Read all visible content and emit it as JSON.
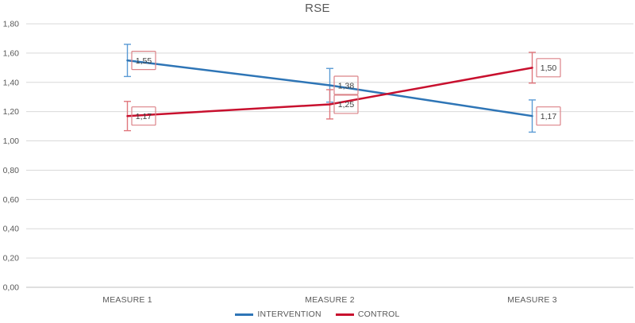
{
  "chart_data": {
    "type": "line",
    "title": "RSE",
    "categories": [
      "MEASURE 1",
      "MEASURE 2",
      "MEASURE 3"
    ],
    "series": [
      {
        "name": "INTERVENTION",
        "color": "#2E75B6",
        "error_color": "#5B9BD5",
        "values": [
          1.55,
          1.38,
          1.17
        ],
        "value_labels": [
          "1,55",
          "1,38",
          "1,17"
        ],
        "errors": [
          0.11,
          0.115,
          0.11
        ]
      },
      {
        "name": "CONTROL",
        "color": "#C8102E",
        "error_color": "#E0777D",
        "values": [
          1.17,
          1.25,
          1.5
        ],
        "value_labels": [
          "1,17",
          "1,25",
          "1,50"
        ],
        "errors": [
          0.1,
          0.1,
          0.105
        ]
      }
    ],
    "ylim": [
      0,
      1.8
    ],
    "ytick_step": 0.2,
    "ytick_labels_top_down": [
      "1,80",
      "1,60",
      "1,40",
      "1,20",
      "1,00",
      "0,80",
      "0,60",
      "0,40",
      "0,20",
      "0,00"
    ],
    "decimal_separator": ",",
    "grid": true,
    "legend_position": "bottom",
    "colors": {
      "gridline": "#D9D9D9",
      "axis_line": "#BFBFBF",
      "tick_text": "#595959",
      "title_text": "#595959",
      "data_label_text": "#3F3F3F",
      "data_label_border": "#DB8388",
      "background": "#FFFFFF"
    }
  }
}
